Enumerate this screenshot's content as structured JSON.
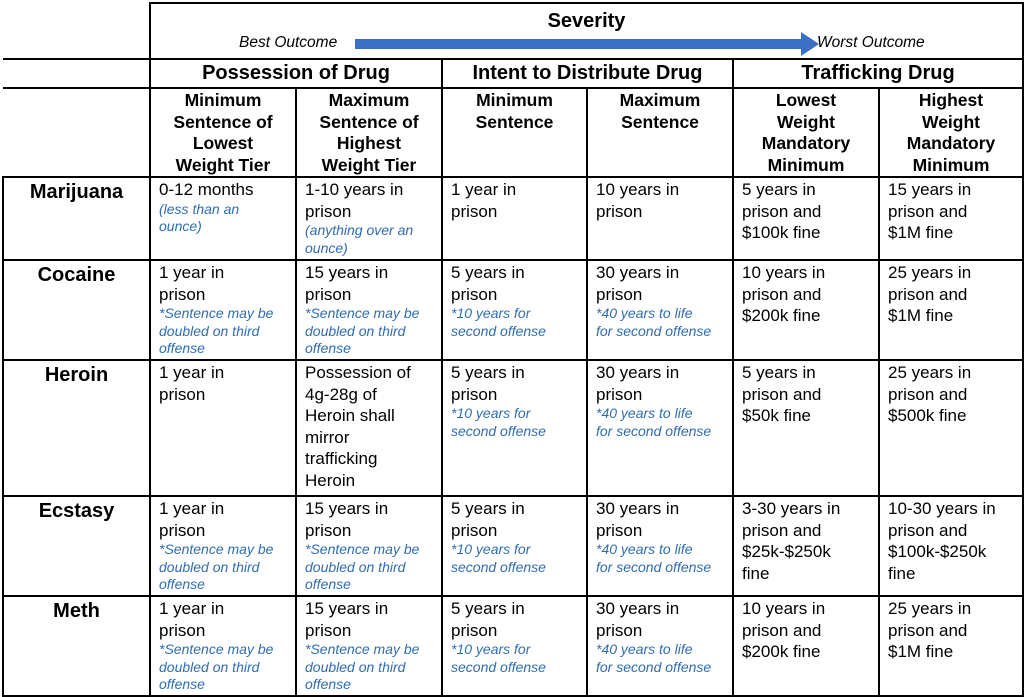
{
  "severity": {
    "title": "Severity",
    "best_label": "Best Outcome",
    "worst_label": "Worst Outcome",
    "arrow_color": "#3a6fc4"
  },
  "categories": [
    "Possession of Drug",
    "Intent to Distribute Drug",
    "Trafficking Drug"
  ],
  "subheaders": [
    [
      "Minimum",
      "Sentence of",
      "Lowest",
      "Weight Tier"
    ],
    [
      "Maximum",
      "Sentence of",
      "Highest",
      "Weight Tier"
    ],
    [
      "Minimum",
      "Sentence"
    ],
    [
      "Maximum",
      "Sentence"
    ],
    [
      "Lowest",
      "Weight",
      "Mandatory",
      "Minimum"
    ],
    [
      "Highest",
      "Weight",
      "Mandatory",
      "Minimum"
    ]
  ],
  "rows": [
    {
      "drug": "Marijuana",
      "cells": [
        {
          "text": [
            "0-12 months"
          ],
          "note": [
            "(less than an",
            "ounce)"
          ]
        },
        {
          "text": [
            "1-10 years in",
            "prison"
          ],
          "note": [
            "(anything over an",
            "ounce)"
          ]
        },
        {
          "text": [
            "1 year in",
            "prison"
          ],
          "note": []
        },
        {
          "text": [
            "10 years in",
            "prison"
          ],
          "note": []
        },
        {
          "text": [
            "5 years in",
            "prison and",
            "$100k fine"
          ],
          "note": []
        },
        {
          "text": [
            "15 years in",
            "prison and",
            "$1M fine"
          ],
          "note": []
        }
      ]
    },
    {
      "drug": "Cocaine",
      "cells": [
        {
          "text": [
            "1 year in",
            "prison"
          ],
          "note": [
            "*Sentence may be",
            "doubled on third",
            "offense"
          ]
        },
        {
          "text": [
            "15 years in",
            "prison"
          ],
          "note": [
            "*Sentence may be",
            "doubled on third",
            "offense"
          ]
        },
        {
          "text": [
            "5 years in",
            "prison"
          ],
          "note": [
            "*10 years for",
            "second offense"
          ]
        },
        {
          "text": [
            "30 years in",
            "prison"
          ],
          "note": [
            "*40 years to life",
            "for second offense"
          ]
        },
        {
          "text": [
            "10 years in",
            "prison and",
            "$200k fine"
          ],
          "note": []
        },
        {
          "text": [
            "25 years in",
            "prison and",
            "$1M fine"
          ],
          "note": []
        }
      ]
    },
    {
      "drug": "Heroin",
      "cells": [
        {
          "text": [
            "1 year in",
            "prison"
          ],
          "note": []
        },
        {
          "text": [
            "Possession of",
            "4g-28g of",
            "Heroin shall",
            "mirror",
            "trafficking",
            "Heroin"
          ],
          "note": []
        },
        {
          "text": [
            "5 years in",
            "prison"
          ],
          "note": [
            "*10 years for",
            "second offense"
          ]
        },
        {
          "text": [
            "30 years in",
            "prison"
          ],
          "note": [
            "*40 years to life",
            "for second offense"
          ]
        },
        {
          "text": [
            "5 years in",
            "prison and",
            "$50k fine"
          ],
          "note": []
        },
        {
          "text": [
            "25 years in",
            "prison and",
            "$500k fine"
          ],
          "note": []
        }
      ]
    },
    {
      "drug": "Ecstasy",
      "cells": [
        {
          "text": [
            "1 year in",
            "prison"
          ],
          "note": [
            "*Sentence may be",
            "doubled on third",
            "offense"
          ]
        },
        {
          "text": [
            "15 years in",
            "prison"
          ],
          "note": [
            "*Sentence may be",
            "doubled on third",
            "offense"
          ]
        },
        {
          "text": [
            "5 years in",
            "prison"
          ],
          "note": [
            "*10 years for",
            "second offense"
          ]
        },
        {
          "text": [
            "30 years in",
            "prison"
          ],
          "note": [
            "*40 years to life",
            "for second offense"
          ]
        },
        {
          "text": [
            "3-30 years in",
            "prison and",
            "$25k-$250k",
            "fine"
          ],
          "note": []
        },
        {
          "text": [
            "10-30 years in",
            "prison and",
            "$100k-$250k",
            "fine"
          ],
          "note": []
        }
      ]
    },
    {
      "drug": "Meth",
      "cells": [
        {
          "text": [
            "1 year in",
            "prison"
          ],
          "note": [
            "*Sentence may be",
            "doubled on third",
            "offense"
          ]
        },
        {
          "text": [
            "15 years in",
            "prison"
          ],
          "note": [
            "*Sentence may be",
            "doubled on third",
            "offense"
          ]
        },
        {
          "text": [
            "5 years in",
            "prison"
          ],
          "note": [
            "*10 years for",
            "second offense"
          ]
        },
        {
          "text": [
            "30 years in",
            "prison"
          ],
          "note": [
            "*40 years to life",
            "for second offense"
          ]
        },
        {
          "text": [
            "10 years in",
            "prison and",
            "$200k fine"
          ],
          "note": []
        },
        {
          "text": [
            "25 years in",
            "prison and",
            "$1M fine"
          ],
          "note": []
        }
      ]
    }
  ]
}
